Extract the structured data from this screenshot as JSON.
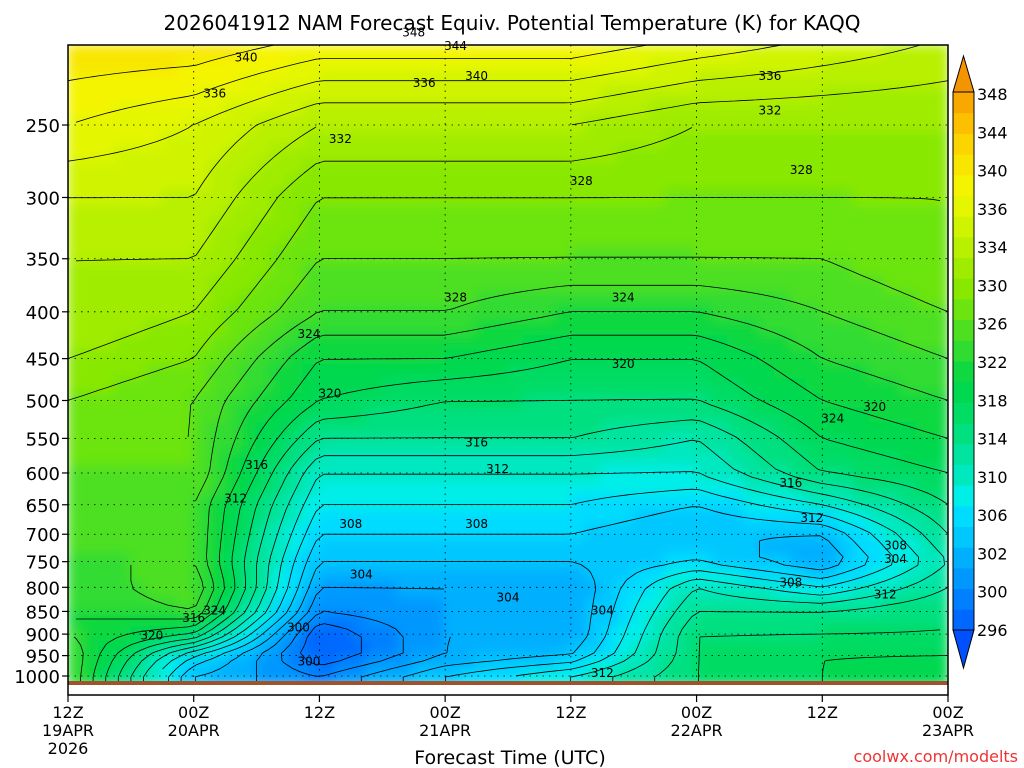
{
  "chart_data": {
    "type": "heatmap",
    "title": "2026041912 NAM Forecast Equiv. Potential Temperature (K) for KAQQ",
    "xlabel": "Forecast Time (UTC)",
    "ylabel": "",
    "credit": "coolwx.com/modelts",
    "y_scale": "log",
    "y_inverted": true,
    "y_ticks": [
      250,
      300,
      350,
      400,
      450,
      500,
      550,
      600,
      650,
      700,
      750,
      800,
      850,
      900,
      950,
      1000
    ],
    "x_ticks": [
      {
        "t": 0,
        "hour": "12Z",
        "day": "19APR",
        "year": "2026"
      },
      {
        "t": 12,
        "hour": "00Z",
        "day": "20APR",
        "year": ""
      },
      {
        "t": 24,
        "hour": "12Z",
        "day": "",
        "year": ""
      },
      {
        "t": 36,
        "hour": "00Z",
        "day": "21APR",
        "year": ""
      },
      {
        "t": 48,
        "hour": "12Z",
        "day": "",
        "year": ""
      },
      {
        "t": 60,
        "hour": "00Z",
        "day": "22APR",
        "year": ""
      },
      {
        "t": 72,
        "hour": "12Z",
        "day": "",
        "year": ""
      },
      {
        "t": 84,
        "hour": "00Z",
        "day": "23APR",
        "year": ""
      }
    ],
    "grid": true,
    "colorbar": {
      "placement": "right",
      "levels": [
        296,
        298,
        300,
        302,
        304,
        306,
        308,
        310,
        312,
        314,
        316,
        318,
        320,
        322,
        324,
        326,
        328,
        330,
        332,
        334,
        336,
        338,
        340,
        342,
        344,
        346,
        348,
        350
      ],
      "colors": [
        "#0050ff",
        "#0068ff",
        "#0080ff",
        "#0098ff",
        "#00b0ff",
        "#00c8ff",
        "#00dcff",
        "#00eee8",
        "#00e8c0",
        "#00e4a0",
        "#00e080",
        "#00dc64",
        "#00d850",
        "#10d840",
        "#30dc30",
        "#4ee020",
        "#6ce410",
        "#88e800",
        "#a0ec00",
        "#b8f000",
        "#d0f400",
        "#e4f600",
        "#f4f400",
        "#f8e600",
        "#fcd400",
        "#fcc000",
        "#f8a800",
        "#f49400"
      ],
      "tick_labels": [
        296,
        300,
        302,
        306,
        310,
        314,
        318,
        322,
        326,
        330,
        334,
        336,
        340,
        344,
        348
      ],
      "extend": "both"
    },
    "series": [
      {
        "time_h": 0,
        "profile_p": [
          1000,
          950,
          900,
          850,
          800,
          750,
          700,
          650,
          600,
          550,
          500,
          450,
          400,
          350,
          300,
          250,
          200
        ],
        "theta_e": [
          326,
          326,
          324,
          324,
          324,
          326,
          326,
          326,
          328,
          328,
          330,
          332,
          334,
          334,
          336,
          340,
          344
        ]
      },
      {
        "time_h": 12,
        "profile_p": [
          1000,
          950,
          900,
          850,
          800,
          750,
          700,
          650,
          600,
          550,
          500,
          450,
          400,
          350,
          300,
          250,
          200
        ],
        "theta_e": [
          306,
          310,
          320,
          326,
          328,
          326,
          326,
          326,
          328,
          328,
          328,
          330,
          332,
          334,
          336,
          338,
          344
        ]
      },
      {
        "time_h": 24,
        "profile_p": [
          1000,
          950,
          900,
          850,
          800,
          750,
          700,
          650,
          600,
          550,
          500,
          450,
          400,
          350,
          300,
          250,
          200
        ],
        "theta_e": [
          302,
          298,
          298,
          302,
          304,
          306,
          308,
          310,
          312,
          316,
          320,
          322,
          326,
          328,
          330,
          334,
          342
        ]
      },
      {
        "time_h": 36,
        "profile_p": [
          1000,
          950,
          900,
          850,
          800,
          750,
          700,
          650,
          600,
          550,
          500,
          450,
          400,
          350,
          300,
          250,
          200
        ],
        "theta_e": [
          308,
          304,
          304,
          304,
          304,
          306,
          308,
          310,
          312,
          316,
          318,
          322,
          326,
          328,
          330,
          334,
          342
        ]
      },
      {
        "time_h": 48,
        "profile_p": [
          1000,
          950,
          900,
          850,
          800,
          750,
          700,
          650,
          600,
          550,
          500,
          450,
          400,
          350,
          300,
          250,
          200
        ],
        "theta_e": [
          312,
          306,
          304,
          304,
          304,
          306,
          308,
          310,
          312,
          316,
          318,
          320,
          324,
          328,
          330,
          334,
          342
        ]
      },
      {
        "time_h": 60,
        "profile_p": [
          1000,
          950,
          900,
          850,
          800,
          750,
          700,
          650,
          600,
          550,
          500,
          450,
          400,
          350,
          300,
          250,
          200
        ],
        "theta_e": [
          318,
          318,
          318,
          316,
          314,
          308,
          306,
          308,
          312,
          314,
          318,
          320,
          324,
          328,
          330,
          332,
          340
        ]
      },
      {
        "time_h": 72,
        "profile_p": [
          1000,
          950,
          900,
          850,
          800,
          750,
          700,
          650,
          600,
          550,
          500,
          450,
          400,
          350,
          300,
          250,
          200
        ],
        "theta_e": [
          320,
          320,
          318,
          316,
          310,
          304,
          306,
          312,
          318,
          320,
          322,
          324,
          326,
          328,
          330,
          332,
          338
        ]
      },
      {
        "time_h": 84,
        "profile_p": [
          1000,
          950,
          900,
          850,
          800,
          750,
          700,
          650,
          600,
          550,
          500,
          450,
          400,
          350,
          300,
          250,
          200
        ],
        "theta_e": [
          322,
          320,
          318,
          318,
          316,
          314,
          316,
          318,
          320,
          322,
          324,
          326,
          328,
          330,
          330,
          332,
          336
        ]
      }
    ],
    "contour_labels": [
      {
        "text": "348",
        "t": 33,
        "p": 198
      },
      {
        "text": "344",
        "t": 37,
        "p": 205
      },
      {
        "text": "340",
        "t": 17,
        "p": 211
      },
      {
        "text": "340",
        "t": 39,
        "p": 221
      },
      {
        "text": "336",
        "t": 14,
        "p": 231
      },
      {
        "text": "336",
        "t": 34,
        "p": 225
      },
      {
        "text": "336",
        "t": 67,
        "p": 221
      },
      {
        "text": "332",
        "t": 26,
        "p": 259
      },
      {
        "text": "332",
        "t": 67,
        "p": 241
      },
      {
        "text": "328",
        "t": 49,
        "p": 288
      },
      {
        "text": "328",
        "t": 70,
        "p": 280
      },
      {
        "text": "328",
        "t": 37,
        "p": 386
      },
      {
        "text": "324",
        "t": 23,
        "p": 423
      },
      {
        "text": "324",
        "t": 53,
        "p": 386
      },
      {
        "text": "324",
        "t": 73,
        "p": 523
      },
      {
        "text": "320",
        "t": 25,
        "p": 491
      },
      {
        "text": "320",
        "t": 53,
        "p": 456
      },
      {
        "text": "320",
        "t": 77,
        "p": 508
      },
      {
        "text": "316",
        "t": 18,
        "p": 588
      },
      {
        "text": "316",
        "t": 39,
        "p": 556
      },
      {
        "text": "316",
        "t": 69,
        "p": 615
      },
      {
        "text": "312",
        "t": 16,
        "p": 640
      },
      {
        "text": "312",
        "t": 41,
        "p": 594
      },
      {
        "text": "312",
        "t": 71,
        "p": 672
      },
      {
        "text": "312",
        "t": 78,
        "p": 815
      },
      {
        "text": "312",
        "t": 51,
        "p": 993
      },
      {
        "text": "308",
        "t": 27,
        "p": 682
      },
      {
        "text": "308",
        "t": 39,
        "p": 682
      },
      {
        "text": "308",
        "t": 79,
        "p": 720
      },
      {
        "text": "308",
        "t": 69,
        "p": 790
      },
      {
        "text": "304",
        "t": 28,
        "p": 775
      },
      {
        "text": "304",
        "t": 42,
        "p": 821
      },
      {
        "text": "304",
        "t": 51,
        "p": 848
      },
      {
        "text": "304",
        "t": 79,
        "p": 745
      },
      {
        "text": "316",
        "t": 12,
        "p": 864
      },
      {
        "text": "324",
        "t": 14,
        "p": 848
      },
      {
        "text": "320",
        "t": 8,
        "p": 903
      },
      {
        "text": "300",
        "t": 22,
        "p": 885
      },
      {
        "text": "300",
        "t": 23,
        "p": 964
      }
    ]
  }
}
